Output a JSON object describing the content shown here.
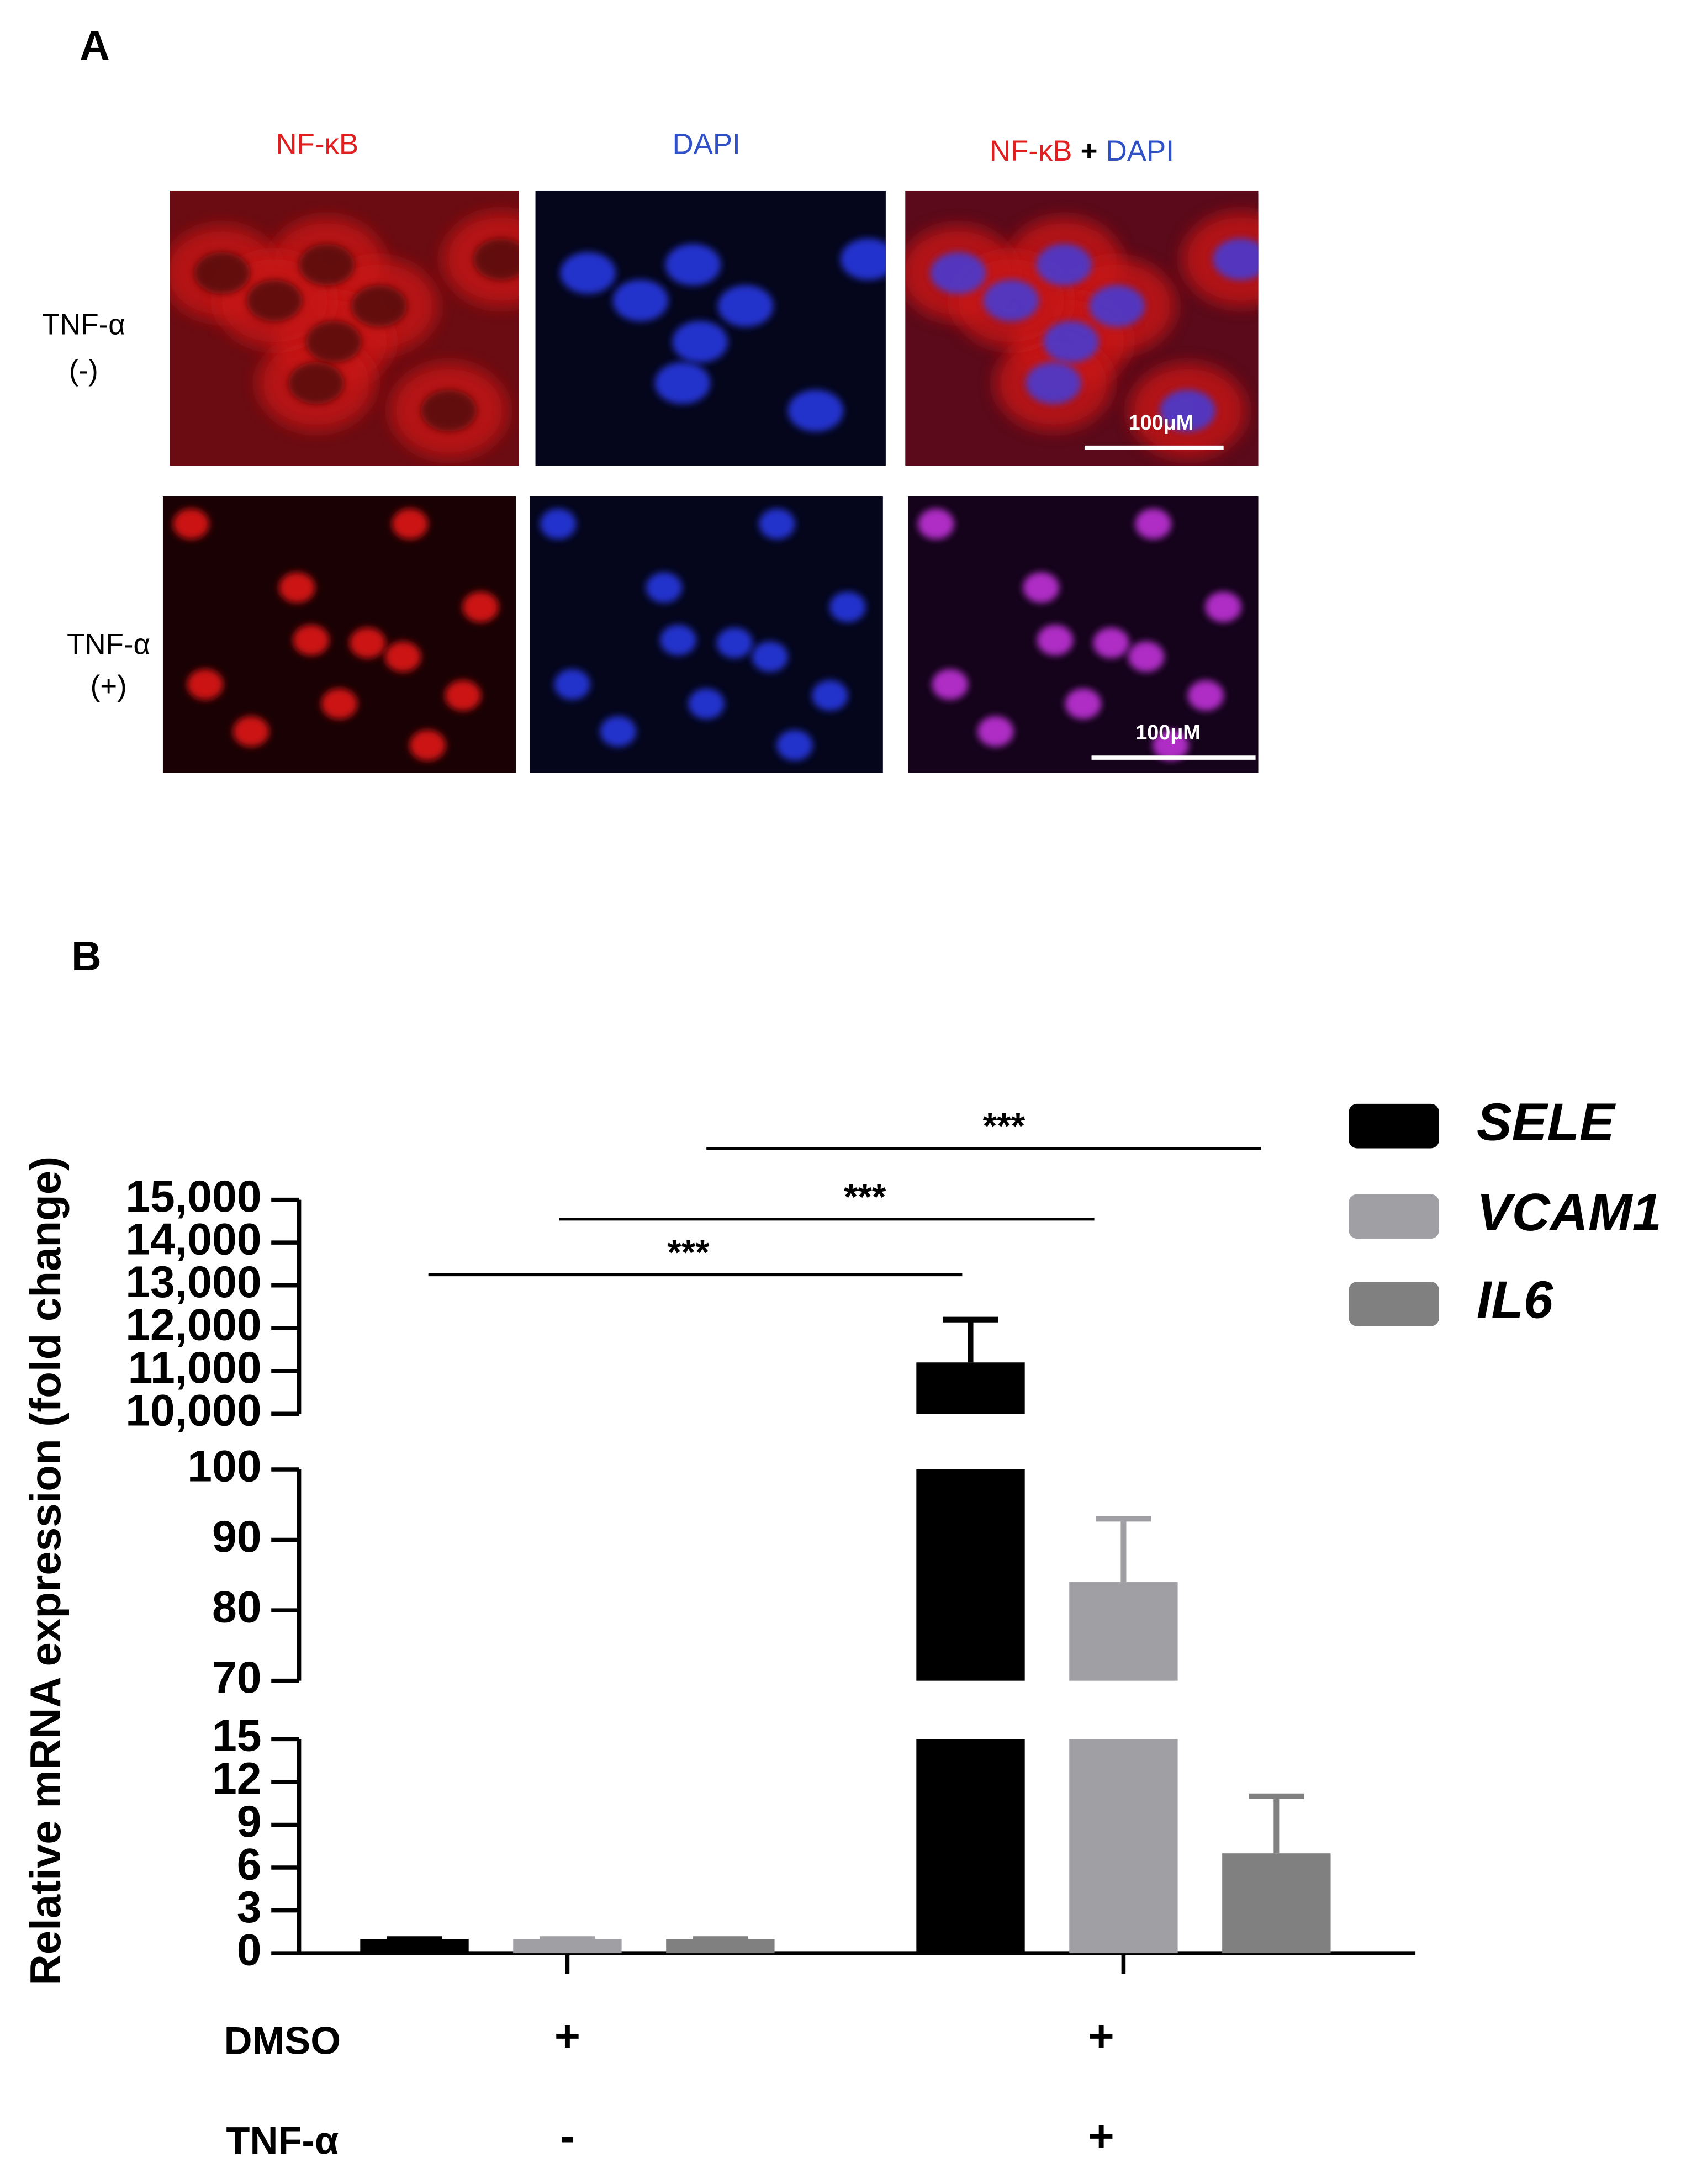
{
  "panel_a": {
    "label": "A",
    "columns": [
      "NF-κB",
      "DAPI"
    ],
    "merge_header": [
      "NF-κB",
      "+",
      "DAPI"
    ],
    "rows": [
      {
        "condition": "TNF-α",
        "state": "(-)",
        "scale_bar": "100μM"
      },
      {
        "condition": "TNF-α",
        "state": "(+)",
        "scale_bar": "100μM"
      }
    ]
  },
  "chart_data": {
    "type": "bar",
    "panel_label": "B",
    "ylabel": "Relative mRNA expression (fold change)",
    "axis_segments": [
      {
        "ylim": [
          0,
          15
        ],
        "yticks": [
          0,
          3,
          6,
          9,
          12,
          15
        ]
      },
      {
        "ylim": [
          70,
          100
        ],
        "yticks": [
          70,
          80,
          90,
          100
        ]
      },
      {
        "ylim": [
          10000,
          15000
        ],
        "yticks": [
          {
            "value": 10000,
            "label": "10,000"
          },
          {
            "value": 11000,
            "label": "11,000"
          },
          {
            "value": 12000,
            "label": "12,000"
          },
          {
            "value": 13000,
            "label": "13,000"
          },
          {
            "value": 14000,
            "label": "14,000"
          },
          {
            "value": 15000,
            "label": "15,000"
          }
        ]
      }
    ],
    "x_rows": [
      {
        "label": "DMSO",
        "values": [
          "+",
          "+"
        ]
      },
      {
        "label": "TNF-α",
        "values": [
          "-",
          "+"
        ]
      }
    ],
    "series": [
      {
        "name": "SELE",
        "color": "#000000",
        "values": [
          1,
          11200
        ],
        "errors": [
          0,
          1000
        ]
      },
      {
        "name": "VCAM1",
        "color": "#a0a0a4",
        "values": [
          1,
          84
        ],
        "errors": [
          0,
          9
        ]
      },
      {
        "name": "IL6",
        "color": "#808080",
        "values": [
          1,
          7
        ],
        "errors": [
          0,
          4
        ]
      }
    ],
    "significance": [
      "***",
      "***",
      "***"
    ]
  }
}
